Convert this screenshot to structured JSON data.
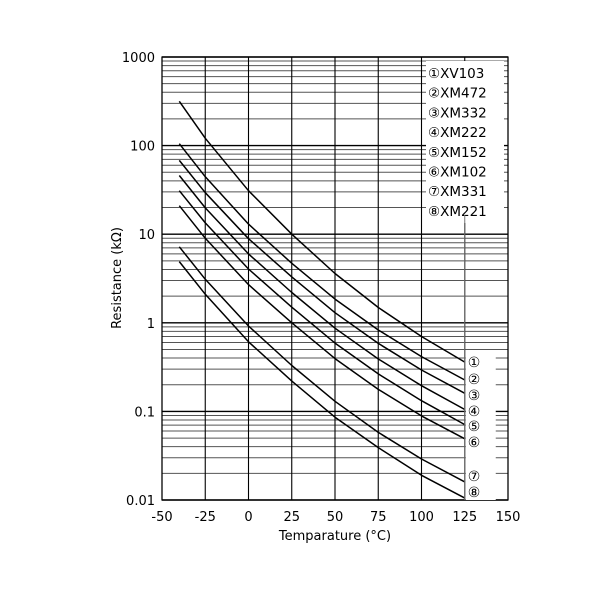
{
  "chart_data": {
    "type": "line",
    "title": "",
    "xlabel": "Temparature (°C)",
    "ylabel": "Resistance (kΩ)",
    "xlim": [
      -50,
      150
    ],
    "ylim": [
      0.01,
      1000
    ],
    "yscale": "log",
    "grid": true,
    "legend_position": "top-right",
    "x_ticks": [
      "-50",
      "-25",
      "0",
      "25",
      "50",
      "75",
      "100",
      "125",
      "150"
    ],
    "y_ticks": [
      "0.01",
      "0.1",
      "1",
      "10",
      "100",
      "1000"
    ],
    "x": [
      -40,
      -25,
      0,
      25,
      50,
      75,
      100,
      125
    ],
    "series": [
      {
        "marker": "①",
        "name": "XV103",
        "values": [
          316,
          121,
          31,
          10,
          3.6,
          1.49,
          0.7,
          0.36
        ]
      },
      {
        "marker": "②",
        "name": "XM472",
        "values": [
          105,
          44.4,
          13.0,
          4.7,
          1.85,
          0.83,
          0.415,
          0.226
        ]
      },
      {
        "marker": "③",
        "name": "XM332",
        "values": [
          68,
          29.4,
          8.9,
          3.3,
          1.3,
          0.585,
          0.293,
          0.16
        ]
      },
      {
        "marker": "④",
        "name": "XM222",
        "values": [
          46,
          19.8,
          6.0,
          2.2,
          0.87,
          0.39,
          0.195,
          0.105
        ]
      },
      {
        "marker": "⑤",
        "name": "XM152",
        "values": [
          31,
          13.4,
          4.05,
          1.5,
          0.59,
          0.265,
          0.132,
          0.071
        ]
      },
      {
        "marker": "⑥",
        "name": "XM102",
        "values": [
          21,
          9.0,
          2.7,
          1.0,
          0.394,
          0.177,
          0.089,
          0.049
        ]
      },
      {
        "marker": "⑦",
        "name": "XM331",
        "values": [
          7.2,
          3.1,
          0.92,
          0.33,
          0.13,
          0.058,
          0.029,
          0.016
        ]
      },
      {
        "marker": "⑧",
        "name": "XM221",
        "values": [
          4.9,
          2.1,
          0.61,
          0.22,
          0.086,
          0.039,
          0.019,
          0.0105
        ]
      }
    ],
    "colors": {
      "line": "#000000",
      "major_grid": "#000000",
      "minor_grid": "#555555"
    }
  }
}
